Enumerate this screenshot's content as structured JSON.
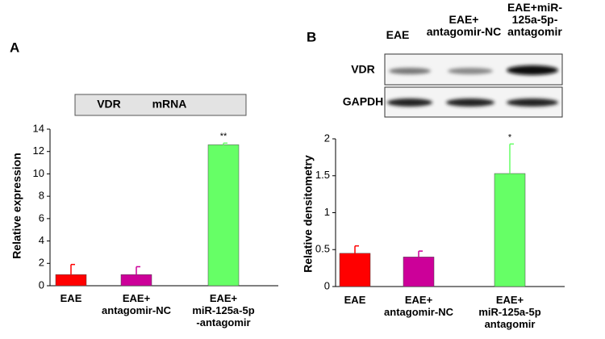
{
  "chart_data": [
    {
      "type": "bar",
      "panel": "A",
      "box_labels": [
        "VDR",
        "mRNA"
      ],
      "ylabel": "Relative expression",
      "categories": [
        "EAE",
        "EAE+\nantagomir-NC",
        "EAE+\nmiR-125a-5p\n-antagomir"
      ],
      "values": [
        1.0,
        1.0,
        12.6
      ],
      "errors": [
        0.9,
        0.7,
        0.15
      ],
      "annotations": [
        null,
        null,
        "**"
      ],
      "colors": [
        "#ff0000",
        "#cc0099",
        "#66ff66"
      ],
      "ylim": [
        0,
        14
      ],
      "yticks": [
        0,
        2,
        4,
        6,
        8,
        10,
        12,
        14
      ]
    },
    {
      "type": "bar",
      "panel": "B",
      "blot": {
        "lanes": [
          "EAE",
          "EAE+\nantagomir-NC",
          "EAE+miR-\n125a-5p-\nantagomir"
        ],
        "rows": [
          "VDR",
          "GAPDH"
        ]
      },
      "ylabel": "Relative densitometry",
      "categories": [
        "EAE",
        "EAE+\nantagomir-NC",
        "EAE+\nmiR-125a-5p\nantagomir"
      ],
      "values": [
        0.45,
        0.4,
        1.53
      ],
      "errors": [
        0.1,
        0.08,
        0.4
      ],
      "annotations": [
        null,
        null,
        "*"
      ],
      "colors": [
        "#ff0000",
        "#cc0099",
        "#66ff66"
      ],
      "ylim": [
        0,
        2
      ],
      "yticks": [
        0,
        0.5,
        1,
        1.5,
        2
      ]
    }
  ]
}
